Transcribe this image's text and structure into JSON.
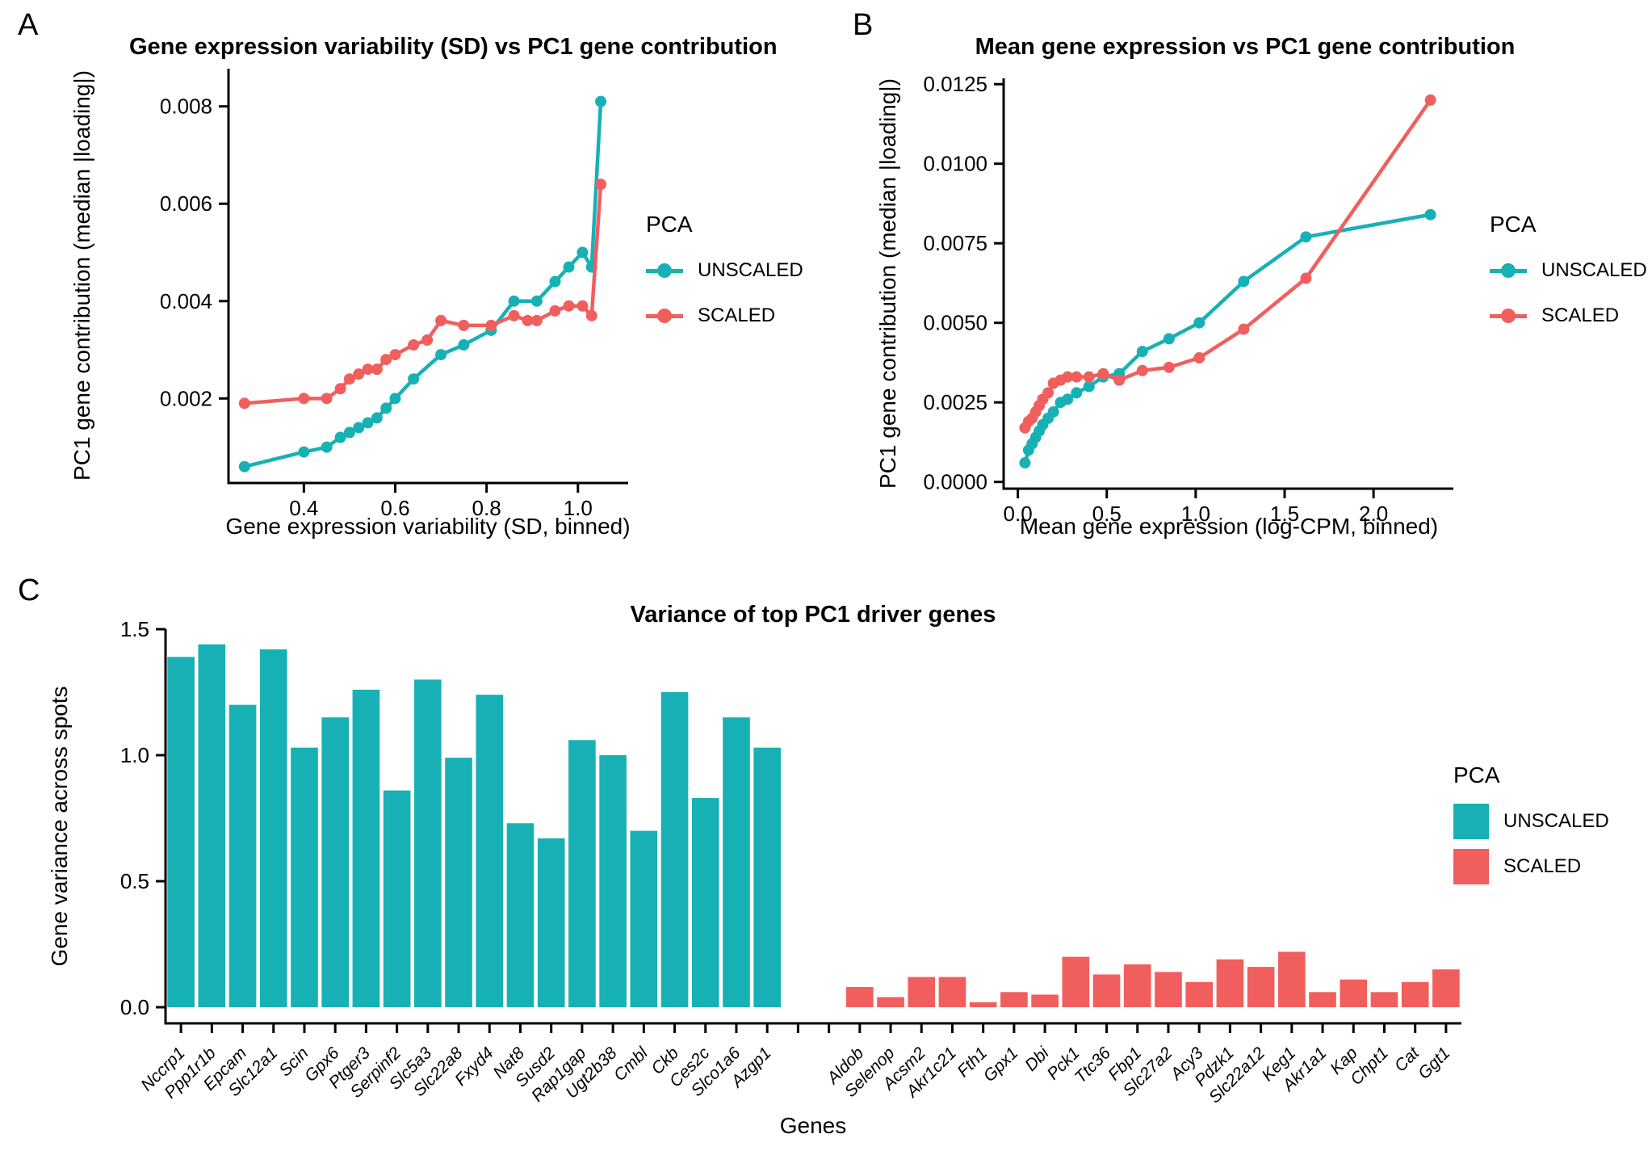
{
  "colors": {
    "unscaled": "#17b1b5",
    "scaled": "#f15e5e",
    "axis": "#000000"
  },
  "panels": {
    "a": {
      "letter": "A"
    },
    "b": {
      "letter": "B"
    },
    "c": {
      "letter": "C"
    }
  },
  "chart_data": [
    {
      "id": "a",
      "type": "line",
      "title": "Gene expression variability (SD) vs PC1 gene contribution",
      "xlabel": "Gene expression variability (SD, binned)",
      "ylabel": "PC1 gene contribution (median |loading|)",
      "legend_title": "PCA",
      "legend_position": "right",
      "grid": false,
      "xlim": [
        0.235,
        1.11
      ],
      "ylim": [
        0.000263,
        0.008775
      ],
      "xticks": [
        0.4,
        0.6,
        0.8,
        1.0
      ],
      "xtick_labels": [
        "0.4",
        "0.6",
        "0.8",
        "1.0"
      ],
      "yticks": [
        0.002,
        0.004,
        0.006,
        0.008
      ],
      "ytick_labels": [
        "0.002",
        "0.004",
        "0.006",
        "0.008"
      ],
      "series": [
        {
          "name": "UNSCALED",
          "color_key": "unscaled",
          "x": [
            0.27,
            0.4,
            0.45,
            0.48,
            0.5,
            0.52,
            0.54,
            0.56,
            0.58,
            0.6,
            0.64,
            0.7,
            0.75,
            0.81,
            0.86,
            0.91,
            0.95,
            0.98,
            1.01,
            1.03,
            1.05
          ],
          "y": [
            0.0006,
            0.0009,
            0.001,
            0.0012,
            0.0013,
            0.0014,
            0.0015,
            0.0016,
            0.0018,
            0.002,
            0.0024,
            0.0029,
            0.0031,
            0.0034,
            0.004,
            0.004,
            0.0044,
            0.0047,
            0.005,
            0.0047,
            0.0081
          ]
        },
        {
          "name": "SCALED",
          "color_key": "scaled",
          "x": [
            0.27,
            0.4,
            0.45,
            0.48,
            0.5,
            0.52,
            0.54,
            0.56,
            0.58,
            0.6,
            0.64,
            0.67,
            0.7,
            0.75,
            0.81,
            0.86,
            0.89,
            0.91,
            0.95,
            0.98,
            1.01,
            1.03,
            1.05
          ],
          "y": [
            0.0019,
            0.002,
            0.002,
            0.0022,
            0.0024,
            0.0025,
            0.0026,
            0.0026,
            0.0028,
            0.0029,
            0.0031,
            0.0032,
            0.0036,
            0.0035,
            0.0035,
            0.0037,
            0.0036,
            0.0036,
            0.0038,
            0.0039,
            0.0039,
            0.0037,
            0.0064
          ]
        }
      ]
    },
    {
      "id": "b",
      "type": "line",
      "title": "Mean gene expression vs PC1 gene contribution",
      "xlabel": "Mean gene expression (log-CPM, binned)",
      "ylabel": "PC1 gene contribution (median |loading|)",
      "legend_title": "PCA",
      "legend_position": "right",
      "grid": false,
      "xlim": [
        -0.08,
        2.449
      ],
      "ylim": [
        -0.000211,
        0.012683
      ],
      "xticks": [
        0.0,
        0.5,
        1.0,
        1.5,
        2.0
      ],
      "xtick_labels": [
        "0.0",
        "0.5",
        "1.0",
        "1.5",
        "2.0"
      ],
      "yticks": [
        0.0,
        0.0025,
        0.005,
        0.0075,
        0.01,
        0.0125
      ],
      "ytick_labels": [
        "0.0000",
        "0.0025",
        "0.0050",
        "0.0075",
        "0.0100",
        "0.0125"
      ],
      "series": [
        {
          "name": "UNSCALED",
          "color_key": "unscaled",
          "x": [
            0.04,
            0.06,
            0.08,
            0.1,
            0.12,
            0.14,
            0.17,
            0.2,
            0.24,
            0.28,
            0.33,
            0.4,
            0.48,
            0.57,
            0.7,
            0.85,
            1.02,
            1.27,
            1.62,
            2.32
          ],
          "y": [
            0.0006,
            0.001,
            0.0012,
            0.0014,
            0.0016,
            0.0018,
            0.002,
            0.0022,
            0.0025,
            0.0026,
            0.0028,
            0.003,
            0.0033,
            0.0034,
            0.0041,
            0.0045,
            0.005,
            0.0063,
            0.0077,
            0.0084
          ]
        },
        {
          "name": "SCALED",
          "color_key": "scaled",
          "x": [
            0.04,
            0.06,
            0.08,
            0.1,
            0.12,
            0.14,
            0.17,
            0.2,
            0.24,
            0.28,
            0.33,
            0.4,
            0.48,
            0.57,
            0.7,
            0.85,
            1.02,
            1.27,
            1.62,
            2.32
          ],
          "y": [
            0.0017,
            0.0019,
            0.002,
            0.0022,
            0.0024,
            0.0026,
            0.0028,
            0.0031,
            0.0032,
            0.0033,
            0.0033,
            0.0033,
            0.0034,
            0.0032,
            0.0035,
            0.0036,
            0.0039,
            0.0048,
            0.0064,
            0.012
          ]
        }
      ]
    },
    {
      "id": "c",
      "type": "bar",
      "title": "Variance of top PC1 driver genes",
      "xlabel": "Genes",
      "ylabel": "Gene variance across spots",
      "legend_title": "PCA",
      "legend_position": "right",
      "grid": false,
      "ylim": [
        -0.064,
        1.5
      ],
      "yticks": [
        0.0,
        0.5,
        1.0,
        1.5
      ],
      "ytick_labels": [
        "0.0",
        "0.5",
        "1.0",
        "1.5"
      ],
      "groups": [
        {
          "name": "UNSCALED",
          "color_key": "unscaled",
          "categories": [
            "Nccrp1",
            "Ppp1r1b",
            "Epcam",
            "Slc12a1",
            "Scin",
            "Gpx6",
            "Ptger3",
            "Serpinf2",
            "Slc5a3",
            "Slc22a8",
            "Fxyd4",
            "Nat8",
            "Susd2",
            "Rap1gap",
            "Ugt2b38",
            "Cmbl",
            "Ckb",
            "Ces2c",
            "Slco1a6",
            "Azgp1"
          ],
          "values": [
            1.39,
            1.44,
            1.2,
            1.42,
            1.03,
            1.15,
            1.26,
            0.86,
            1.3,
            0.99,
            1.24,
            0.73,
            0.67,
            1.06,
            1.0,
            0.7,
            1.25,
            0.83,
            1.15,
            1.03
          ]
        },
        {
          "name": "SCALED",
          "color_key": "scaled",
          "categories": [
            "Aldob",
            "Selenop",
            "Acsm2",
            "Akr1c21",
            "Fth1",
            "Gpx1",
            "Dbi",
            "Pck1",
            "Ttc36",
            "Fbp1",
            "Slc27a2",
            "Acy3",
            "Pdzk1",
            "Slc22a12",
            "Keg1",
            "Akr1a1",
            "Kap",
            "Chpt1",
            "Cat",
            "Ggt1"
          ],
          "values": [
            0.08,
            0.04,
            0.12,
            0.12,
            0.02,
            0.06,
            0.05,
            0.2,
            0.13,
            0.17,
            0.14,
            0.1,
            0.19,
            0.16,
            0.22,
            0.06,
            0.11,
            0.06,
            0.1,
            0.15
          ]
        }
      ]
    }
  ]
}
